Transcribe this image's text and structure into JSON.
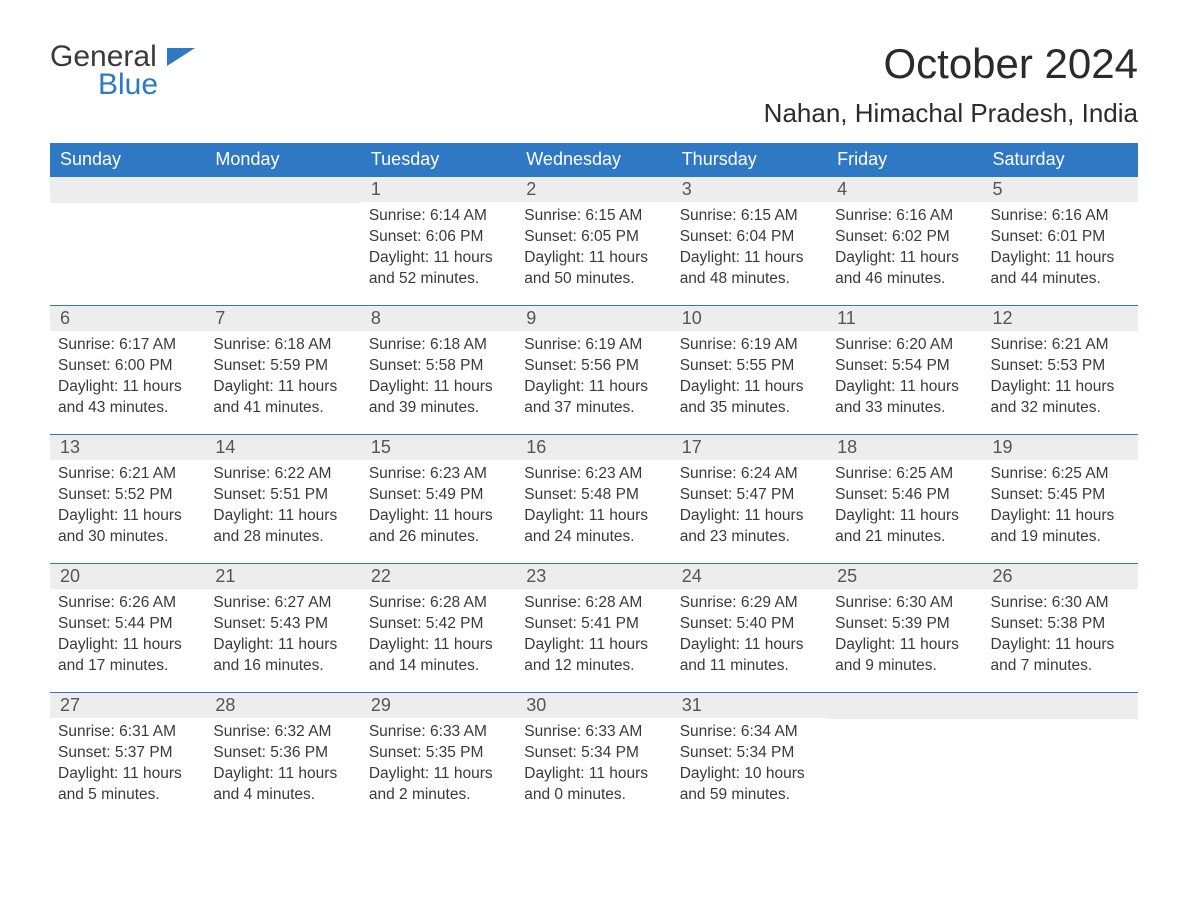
{
  "brand": {
    "general": "General",
    "blue": "Blue"
  },
  "title": "October 2024",
  "location": "Nahan, Himachal Pradesh, India",
  "colors": {
    "header_bg": "#2f78c4",
    "header_text": "#ffffff",
    "daynum_bg": "#ededed",
    "text": "#3a3a3a",
    "border": "#2f78c4",
    "page_bg": "#ffffff",
    "brand_blue": "#2f78c4"
  },
  "typography": {
    "title_fontsize": 42,
    "location_fontsize": 26,
    "weekday_fontsize": 18,
    "daynum_fontsize": 18,
    "body_fontsize": 15.5
  },
  "weekdays": [
    "Sunday",
    "Monday",
    "Tuesday",
    "Wednesday",
    "Thursday",
    "Friday",
    "Saturday"
  ],
  "weeks": [
    [
      null,
      null,
      {
        "n": "1",
        "sunrise": "Sunrise: 6:14 AM",
        "sunset": "Sunset: 6:06 PM",
        "daylight": "Daylight: 11 hours and 52 minutes."
      },
      {
        "n": "2",
        "sunrise": "Sunrise: 6:15 AM",
        "sunset": "Sunset: 6:05 PM",
        "daylight": "Daylight: 11 hours and 50 minutes."
      },
      {
        "n": "3",
        "sunrise": "Sunrise: 6:15 AM",
        "sunset": "Sunset: 6:04 PM",
        "daylight": "Daylight: 11 hours and 48 minutes."
      },
      {
        "n": "4",
        "sunrise": "Sunrise: 6:16 AM",
        "sunset": "Sunset: 6:02 PM",
        "daylight": "Daylight: 11 hours and 46 minutes."
      },
      {
        "n": "5",
        "sunrise": "Sunrise: 6:16 AM",
        "sunset": "Sunset: 6:01 PM",
        "daylight": "Daylight: 11 hours and 44 minutes."
      }
    ],
    [
      {
        "n": "6",
        "sunrise": "Sunrise: 6:17 AM",
        "sunset": "Sunset: 6:00 PM",
        "daylight": "Daylight: 11 hours and 43 minutes."
      },
      {
        "n": "7",
        "sunrise": "Sunrise: 6:18 AM",
        "sunset": "Sunset: 5:59 PM",
        "daylight": "Daylight: 11 hours and 41 minutes."
      },
      {
        "n": "8",
        "sunrise": "Sunrise: 6:18 AM",
        "sunset": "Sunset: 5:58 PM",
        "daylight": "Daylight: 11 hours and 39 minutes."
      },
      {
        "n": "9",
        "sunrise": "Sunrise: 6:19 AM",
        "sunset": "Sunset: 5:56 PM",
        "daylight": "Daylight: 11 hours and 37 minutes."
      },
      {
        "n": "10",
        "sunrise": "Sunrise: 6:19 AM",
        "sunset": "Sunset: 5:55 PM",
        "daylight": "Daylight: 11 hours and 35 minutes."
      },
      {
        "n": "11",
        "sunrise": "Sunrise: 6:20 AM",
        "sunset": "Sunset: 5:54 PM",
        "daylight": "Daylight: 11 hours and 33 minutes."
      },
      {
        "n": "12",
        "sunrise": "Sunrise: 6:21 AM",
        "sunset": "Sunset: 5:53 PM",
        "daylight": "Daylight: 11 hours and 32 minutes."
      }
    ],
    [
      {
        "n": "13",
        "sunrise": "Sunrise: 6:21 AM",
        "sunset": "Sunset: 5:52 PM",
        "daylight": "Daylight: 11 hours and 30 minutes."
      },
      {
        "n": "14",
        "sunrise": "Sunrise: 6:22 AM",
        "sunset": "Sunset: 5:51 PM",
        "daylight": "Daylight: 11 hours and 28 minutes."
      },
      {
        "n": "15",
        "sunrise": "Sunrise: 6:23 AM",
        "sunset": "Sunset: 5:49 PM",
        "daylight": "Daylight: 11 hours and 26 minutes."
      },
      {
        "n": "16",
        "sunrise": "Sunrise: 6:23 AM",
        "sunset": "Sunset: 5:48 PM",
        "daylight": "Daylight: 11 hours and 24 minutes."
      },
      {
        "n": "17",
        "sunrise": "Sunrise: 6:24 AM",
        "sunset": "Sunset: 5:47 PM",
        "daylight": "Daylight: 11 hours and 23 minutes."
      },
      {
        "n": "18",
        "sunrise": "Sunrise: 6:25 AM",
        "sunset": "Sunset: 5:46 PM",
        "daylight": "Daylight: 11 hours and 21 minutes."
      },
      {
        "n": "19",
        "sunrise": "Sunrise: 6:25 AM",
        "sunset": "Sunset: 5:45 PM",
        "daylight": "Daylight: 11 hours and 19 minutes."
      }
    ],
    [
      {
        "n": "20",
        "sunrise": "Sunrise: 6:26 AM",
        "sunset": "Sunset: 5:44 PM",
        "daylight": "Daylight: 11 hours and 17 minutes."
      },
      {
        "n": "21",
        "sunrise": "Sunrise: 6:27 AM",
        "sunset": "Sunset: 5:43 PM",
        "daylight": "Daylight: 11 hours and 16 minutes."
      },
      {
        "n": "22",
        "sunrise": "Sunrise: 6:28 AM",
        "sunset": "Sunset: 5:42 PM",
        "daylight": "Daylight: 11 hours and 14 minutes."
      },
      {
        "n": "23",
        "sunrise": "Sunrise: 6:28 AM",
        "sunset": "Sunset: 5:41 PM",
        "daylight": "Daylight: 11 hours and 12 minutes."
      },
      {
        "n": "24",
        "sunrise": "Sunrise: 6:29 AM",
        "sunset": "Sunset: 5:40 PM",
        "daylight": "Daylight: 11 hours and 11 minutes."
      },
      {
        "n": "25",
        "sunrise": "Sunrise: 6:30 AM",
        "sunset": "Sunset: 5:39 PM",
        "daylight": "Daylight: 11 hours and 9 minutes."
      },
      {
        "n": "26",
        "sunrise": "Sunrise: 6:30 AM",
        "sunset": "Sunset: 5:38 PM",
        "daylight": "Daylight: 11 hours and 7 minutes."
      }
    ],
    [
      {
        "n": "27",
        "sunrise": "Sunrise: 6:31 AM",
        "sunset": "Sunset: 5:37 PM",
        "daylight": "Daylight: 11 hours and 5 minutes."
      },
      {
        "n": "28",
        "sunrise": "Sunrise: 6:32 AM",
        "sunset": "Sunset: 5:36 PM",
        "daylight": "Daylight: 11 hours and 4 minutes."
      },
      {
        "n": "29",
        "sunrise": "Sunrise: 6:33 AM",
        "sunset": "Sunset: 5:35 PM",
        "daylight": "Daylight: 11 hours and 2 minutes."
      },
      {
        "n": "30",
        "sunrise": "Sunrise: 6:33 AM",
        "sunset": "Sunset: 5:34 PM",
        "daylight": "Daylight: 11 hours and 0 minutes."
      },
      {
        "n": "31",
        "sunrise": "Sunrise: 6:34 AM",
        "sunset": "Sunset: 5:34 PM",
        "daylight": "Daylight: 10 hours and 59 minutes."
      },
      null,
      null
    ]
  ]
}
